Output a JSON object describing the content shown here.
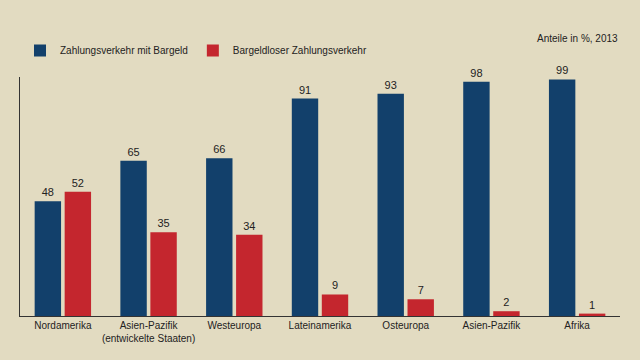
{
  "chart_data": {
    "type": "bar",
    "annotation": "Anteile in %, 2013",
    "categories": [
      "Nordamerika",
      "Asien-Pazifik (entwickelte Staaten)",
      "Westeuropa",
      "Lateinamerika",
      "Osteuropa",
      "Asien-Pazifik",
      "Afrika"
    ],
    "series": [
      {
        "name": "Zahlungsverkehr mit Bargeld",
        "color": "#12406b",
        "values": [
          48,
          65,
          66,
          91,
          93,
          98,
          99
        ]
      },
      {
        "name": "Bargeldloser Zahlungsverkehr",
        "color": "#c4262e",
        "values": [
          52,
          35,
          34,
          9,
          7,
          2,
          1
        ]
      }
    ],
    "ylim": [
      0,
      100
    ],
    "data_labels": true,
    "tick_labels": "x",
    "grid": false,
    "legend": "top"
  }
}
